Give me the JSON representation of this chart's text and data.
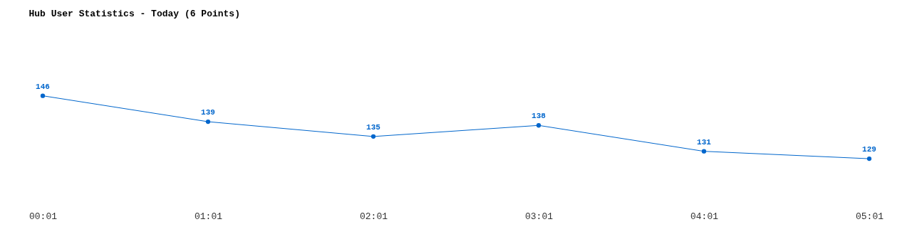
{
  "chart_data": {
    "type": "line",
    "title": "Hub User Statistics - Today (6 Points)",
    "categories": [
      "00:01",
      "01:01",
      "02:01",
      "03:01",
      "04:01",
      "05:01"
    ],
    "series": [
      {
        "color": "#0066cc",
        "values": [
          146,
          139,
          135,
          138,
          131,
          129
        ]
      }
    ],
    "data_labels": true,
    "marker": "circle",
    "line_style": "solid",
    "grid": false
  }
}
